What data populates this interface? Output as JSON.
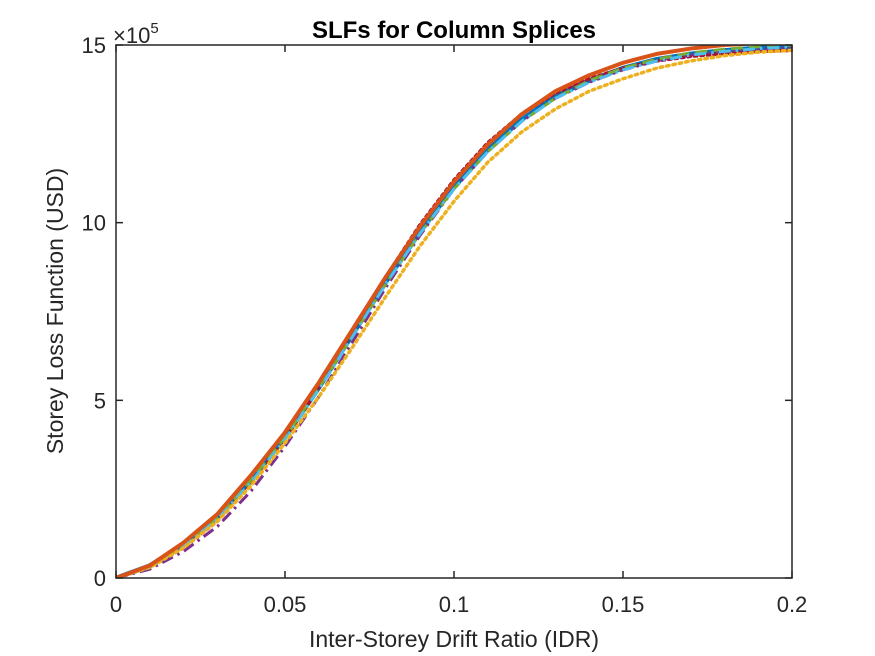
{
  "chart_data": {
    "type": "line",
    "title": "SLFs for Column Splices",
    "xlabel": "Inter-Storey Drift Ratio (IDR)",
    "ylabel": "Storey Loss Function (USD)",
    "xlim": [
      0,
      0.2
    ],
    "ylim": [
      0,
      15
    ],
    "y_exponent_prefix": "×10",
    "y_exponent_power": "5",
    "xticks": [
      0,
      0.05,
      0.1,
      0.15,
      0.2
    ],
    "xtick_labels": [
      "0",
      "0.05",
      "0.1",
      "0.15",
      "0.2"
    ],
    "yticks": [
      0,
      5,
      10,
      15
    ],
    "ytick_labels": [
      "0",
      "5",
      "10",
      "15"
    ],
    "grid": false,
    "legend": "none",
    "x": [
      0,
      0.01,
      0.02,
      0.03,
      0.04,
      0.05,
      0.06,
      0.07,
      0.08,
      0.09,
      0.1,
      0.11,
      0.12,
      0.13,
      0.14,
      0.15,
      0.16,
      0.17,
      0.18,
      0.19,
      0.2
    ],
    "series": [
      {
        "color": "#0072BD",
        "style": "solid",
        "width": 4.5,
        "values": [
          0,
          0.35,
          0.95,
          1.7,
          2.75,
          3.95,
          5.35,
          6.85,
          8.35,
          9.75,
          11.0,
          12.05,
          12.9,
          13.55,
          14.0,
          14.35,
          14.6,
          14.75,
          14.85,
          14.92,
          14.95
        ]
      },
      {
        "color": "#A2142F",
        "style": "dotted",
        "width": 3.5,
        "values": [
          0,
          0.3,
          0.85,
          1.6,
          2.65,
          3.9,
          5.35,
          6.95,
          8.5,
          9.95,
          11.2,
          12.25,
          13.05,
          13.65,
          14.05,
          14.35,
          14.55,
          14.68,
          14.76,
          14.82,
          14.85
        ]
      },
      {
        "color": "#7E2F8E",
        "style": "dashdot",
        "width": 3,
        "values": [
          0,
          0.25,
          0.75,
          1.45,
          2.45,
          3.7,
          5.1,
          6.65,
          8.2,
          9.65,
          10.95,
          12.0,
          12.85,
          13.5,
          13.95,
          14.3,
          14.55,
          14.72,
          14.82,
          14.88,
          14.92
        ]
      },
      {
        "color": "#77AC30",
        "style": "dashed",
        "width": 3,
        "values": [
          0,
          0.3,
          0.9,
          1.7,
          2.75,
          3.95,
          5.35,
          6.8,
          8.3,
          9.7,
          10.95,
          12.0,
          12.85,
          13.5,
          14.0,
          14.35,
          14.6,
          14.78,
          14.88,
          14.95,
          15.0
        ]
      },
      {
        "color": "#4DBEEE",
        "style": "dashdot",
        "width": 3,
        "values": [
          0,
          0.3,
          0.9,
          1.65,
          2.7,
          3.9,
          5.3,
          6.8,
          8.3,
          9.7,
          10.95,
          12.0,
          12.85,
          13.5,
          13.95,
          14.3,
          14.55,
          14.72,
          14.82,
          14.9,
          14.95
        ]
      },
      {
        "color": "#EDB120",
        "style": "dotted",
        "width": 3.5,
        "values": [
          0,
          0.3,
          0.85,
          1.6,
          2.6,
          3.8,
          5.1,
          6.5,
          7.95,
          9.35,
          10.6,
          11.7,
          12.55,
          13.2,
          13.7,
          14.05,
          14.35,
          14.55,
          14.7,
          14.8,
          14.85
        ]
      },
      {
        "color": "#D95319",
        "style": "solid",
        "width": 4,
        "values": [
          0,
          0.35,
          1.0,
          1.8,
          2.9,
          4.1,
          5.5,
          7.0,
          8.5,
          9.9,
          11.15,
          12.2,
          13.05,
          13.7,
          14.15,
          14.5,
          14.75,
          14.9,
          15.0,
          15.05,
          15.05
        ]
      }
    ]
  }
}
